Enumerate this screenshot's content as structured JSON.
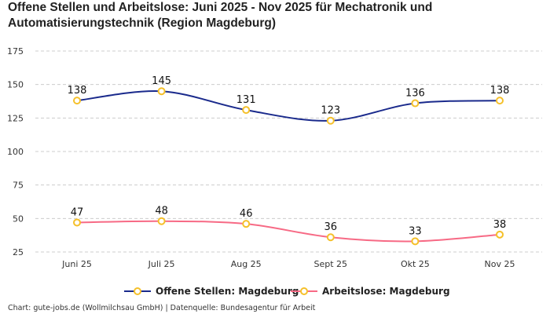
{
  "chart_data": {
    "type": "line",
    "title": "Offene Stellen und Arbeitslose: Juni 2025 - Nov 2025 für Mechatronik und Automatisierungstechnik (Region Magdeburg)",
    "categories": [
      "Juni 25",
      "Juli 25",
      "Aug 25",
      "Sept 25",
      "Okt 25",
      "Nov 25"
    ],
    "yticks": [
      25,
      50,
      75,
      100,
      125,
      150,
      175
    ],
    "ylim": [
      25,
      175
    ],
    "grid": true,
    "legend_position": "bottom",
    "series": [
      {
        "name": "Offene Stellen: Magdeburg",
        "values": [
          138,
          145,
          131,
          123,
          136,
          138
        ],
        "color": "#1a2a8c"
      },
      {
        "name": "Arbeitslose: Magdeburg",
        "values": [
          47,
          48,
          46,
          36,
          33,
          38
        ],
        "color": "#f76a85"
      }
    ],
    "marker_color": "#f5c02a"
  },
  "footer": "Chart: gute-jobs.de (Wollmilchsau GmbH) | Datenquelle: Bundesagentur für Arbeit"
}
